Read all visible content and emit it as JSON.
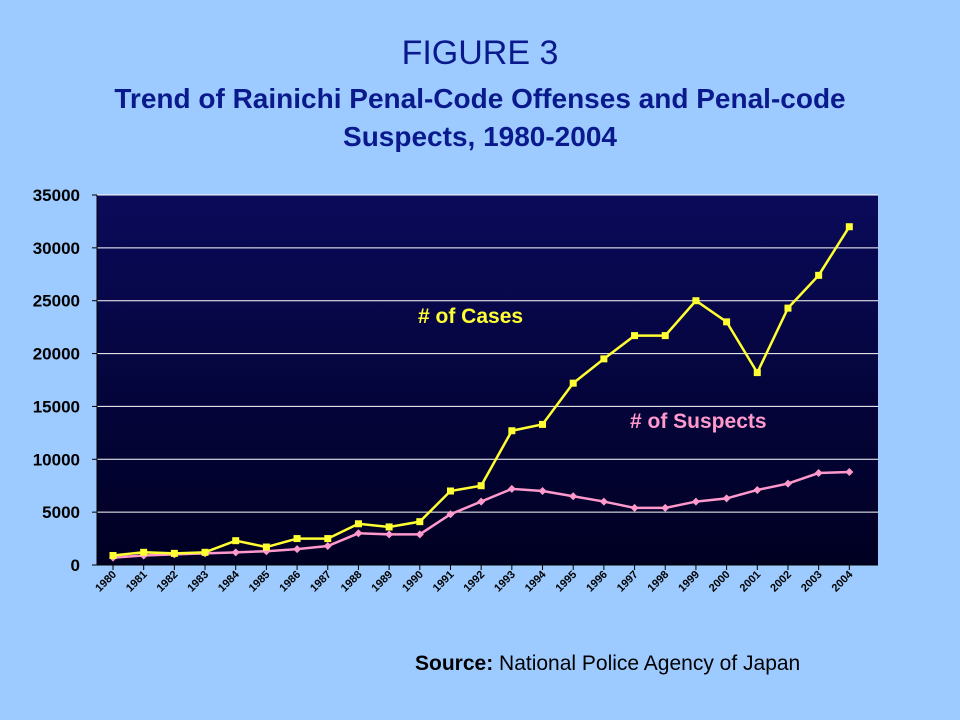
{
  "figure_label": "FIGURE 3",
  "source": {
    "label": "Source:",
    "text": "National Police Agency of Japan"
  },
  "chart_data": {
    "type": "line",
    "title": "Trend of Rainichi Penal-Code Offenses and Penal-code Suspects, 1980-2004",
    "categories": [
      "1980",
      "1981",
      "1982",
      "1983",
      "1984",
      "1985",
      "1986",
      "1987",
      "1988",
      "1989",
      "1990",
      "1991",
      "1992",
      "1993",
      "1994",
      "1995",
      "1996",
      "1997",
      "1998",
      "1999",
      "2000",
      "2001",
      "2002",
      "2003",
      "2004"
    ],
    "ylim": [
      0,
      35000
    ],
    "yticks": [
      0,
      5000,
      10000,
      15000,
      20000,
      25000,
      30000,
      35000
    ],
    "grid": true,
    "series": [
      {
        "name": "# of Cases",
        "color": "#ffff33",
        "values": [
          900,
          1200,
          1100,
          1200,
          2300,
          1700,
          2500,
          2500,
          3900,
          3600,
          4100,
          7000,
          7500,
          12700,
          13300,
          17200,
          19500,
          21700,
          21700,
          25000,
          23000,
          18200,
          24300,
          27400,
          32000
        ]
      },
      {
        "name": "# of Suspects",
        "color": "#ff99cc",
        "values": [
          700,
          900,
          1000,
          1100,
          1200,
          1300,
          1500,
          1800,
          3000,
          2900,
          2900,
          4800,
          6000,
          7200,
          7000,
          6500,
          6000,
          5400,
          5400,
          6000,
          6300,
          7100,
          7700,
          8700,
          8800
        ]
      }
    ]
  }
}
